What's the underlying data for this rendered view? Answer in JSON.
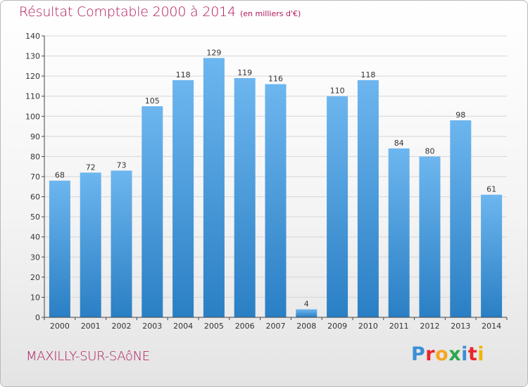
{
  "header": {
    "title": "Résultat Comptable 2000 à 2014",
    "unit": "(en milliers d'€)"
  },
  "footer": {
    "city": "MAXILLY-SUR-SAôNE",
    "logo_text": "Proxiti",
    "logo_colors": [
      "#3a8fd6",
      "#e8262b",
      "#f5a623",
      "#2aa84a",
      "#3a8fd6",
      "#e8262b",
      "#f0b400"
    ]
  },
  "colors": {
    "bar_top": "#6db6ef",
    "bar_bottom": "#2a7fc4",
    "grid": "#d6d6d6",
    "axis": "#444444"
  },
  "chart_data": {
    "type": "bar",
    "categories": [
      "2000",
      "2001",
      "2002",
      "2003",
      "2004",
      "2005",
      "2006",
      "2007",
      "2008",
      "2009",
      "2010",
      "2011",
      "2012",
      "2013",
      "2014"
    ],
    "values": [
      68,
      72,
      73,
      105,
      118,
      129,
      119,
      116,
      4,
      110,
      118,
      84,
      80,
      98,
      61
    ],
    "ylim": [
      0,
      140
    ],
    "yticks": [
      0,
      10,
      20,
      30,
      40,
      50,
      60,
      70,
      80,
      90,
      100,
      110,
      120,
      130,
      140
    ],
    "grid": true,
    "xlabel": "",
    "ylabel": ""
  }
}
